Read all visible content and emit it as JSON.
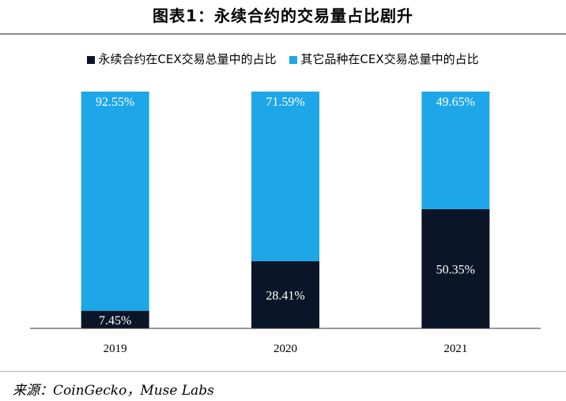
{
  "title": "图表1：永续合约的交易量占比剧升",
  "source": "来源：CoinGecko，Muse Labs",
  "colors": {
    "perpetual": "#0a1628",
    "other": "#1ea7e8",
    "axis": "#333333"
  },
  "chart_data": {
    "type": "bar",
    "stacked": true,
    "categories": [
      "2019",
      "2020",
      "2021"
    ],
    "series": [
      {
        "name": "永续合约在CEX交易总量中的占比",
        "values": [
          7.45,
          28.41,
          50.35
        ],
        "labels": [
          "7.45%",
          "28.41%",
          "50.35%"
        ]
      },
      {
        "name": "其它品种在CEX交易总量中的占比",
        "values": [
          92.55,
          71.59,
          49.65
        ],
        "labels": [
          "92.55%",
          "71.59%",
          "49.65%"
        ]
      }
    ],
    "ylim": [
      0,
      100
    ],
    "legend": "top",
    "grid": false
  }
}
